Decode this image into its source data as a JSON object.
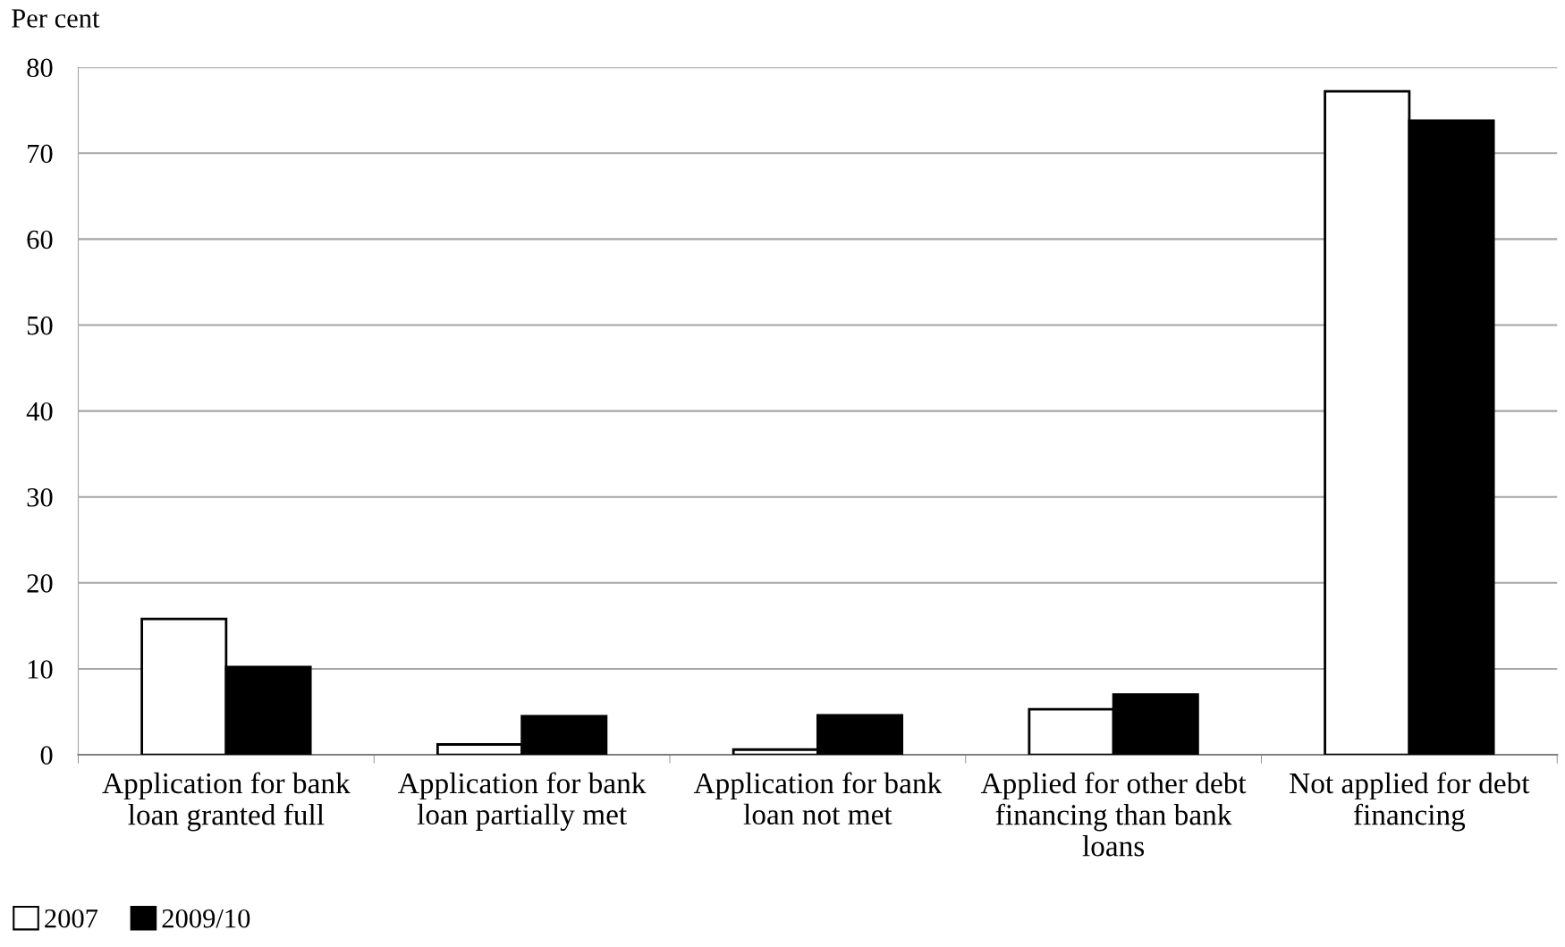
{
  "chart_data": {
    "type": "bar",
    "ylabel": "Per cent",
    "categories": [
      "Application for bank loan granted full",
      "Application for bank loan partially met",
      "Application for bank loan not met",
      "Applied for other debt financing than bank loans",
      "Not applied for debt financing"
    ],
    "series": [
      {
        "name": "2007",
        "color": "#ffffff",
        "values": [
          15.8,
          1.2,
          0.6,
          5.3,
          77.2
        ]
      },
      {
        "name": "2009/10",
        "color": "#000000",
        "values": [
          10.2,
          4.5,
          4.6,
          7.0,
          73.8
        ]
      }
    ],
    "ylim": [
      0,
      80
    ],
    "yticks": [
      0,
      10,
      20,
      30,
      40,
      50,
      60,
      70,
      80
    ],
    "grid": "y",
    "legend": "bottom left"
  }
}
